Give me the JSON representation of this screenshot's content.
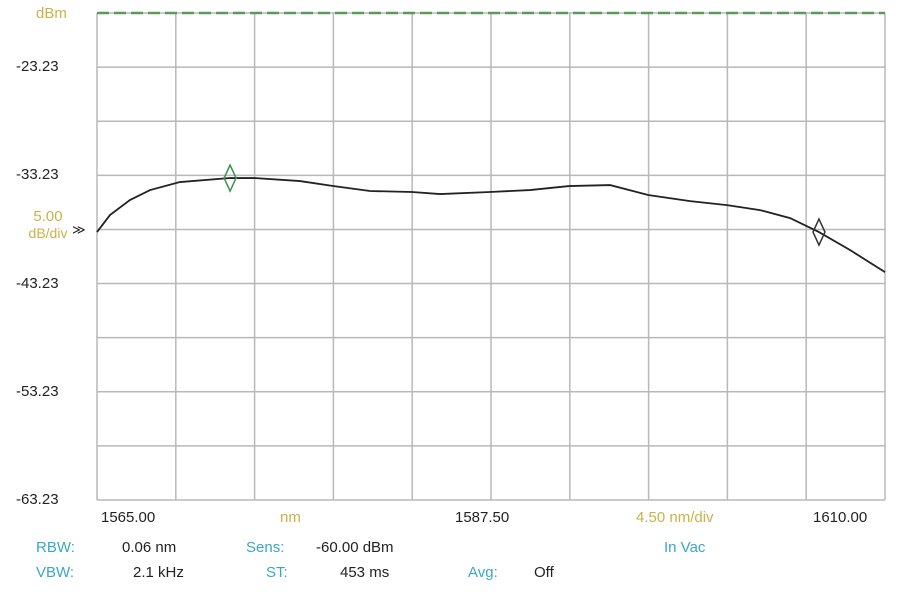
{
  "chart_data": {
    "type": "line",
    "ylabel_unit": "dBm",
    "xlabel_unit": "nm",
    "ylim": [
      -63.23,
      -18.23
    ],
    "xlim": [
      1565.0,
      1610.0
    ],
    "y_tick_labels": [
      "-23.23",
      "-33.23",
      "-43.23",
      "-53.23",
      "-63.23"
    ],
    "y_ticks": [
      -23.23,
      -33.23,
      -43.23,
      -53.23,
      -63.23
    ],
    "x_tick_labels": [
      "1565.00",
      "1587.50",
      "1610.00"
    ],
    "x_ticks": [
      1565.0,
      1587.5,
      1610.0
    ],
    "y_scale_label": [
      "5.00",
      "dB/div"
    ],
    "y_scale_level": -38.23,
    "x_scale_label": "4.50 nm/div",
    "grid": true,
    "x_divisions": 10,
    "y_divisions": 9,
    "reference_line": -18.23,
    "series": [
      {
        "x": [
          1565.0,
          1565.74,
          1566.88,
          1568.03,
          1569.74,
          1572.6,
          1573.97,
          1576.59,
          1578.48,
          1580.59,
          1582.99,
          1584.59,
          1587.44,
          1589.72,
          1591.95,
          1594.3,
          1596.47,
          1598.87,
          1600.98,
          1602.86,
          1604.58,
          1606.23,
          1608.0,
          1610.0
        ],
        "y": [
          -38.47,
          -36.9,
          -35.51,
          -34.59,
          -33.85,
          -33.48,
          -33.48,
          -33.76,
          -34.22,
          -34.68,
          -34.77,
          -34.96,
          -34.77,
          -34.59,
          -34.22,
          -34.13,
          -35.05,
          -35.61,
          -35.98,
          -36.44,
          -37.18,
          -38.47,
          -40.13,
          -42.17
        ]
      }
    ],
    "markers": [
      {
        "x": 1572.6,
        "y": -33.48,
        "color": "#3f8f4f"
      },
      {
        "x": 1606.23,
        "y": -38.47,
        "color": "#333333"
      }
    ]
  },
  "status": {
    "rbw_label": "RBW:",
    "rbw_value": "0.06 nm",
    "vbw_label": "VBW:",
    "vbw_value": "2.1 kHz",
    "sens_label": "Sens:",
    "sens_value": "-60.00 dBm",
    "st_label": "ST:",
    "st_value": "453 ms",
    "avg_label": "Avg:",
    "avg_value": "Off",
    "medium": "In Vac"
  },
  "colors": {
    "grid": "#b8b8b8",
    "trace": "#222222",
    "reference": "#5a9a5a",
    "label_cyan": "#3aa7c4",
    "label_yellow": "#c9b24a"
  }
}
